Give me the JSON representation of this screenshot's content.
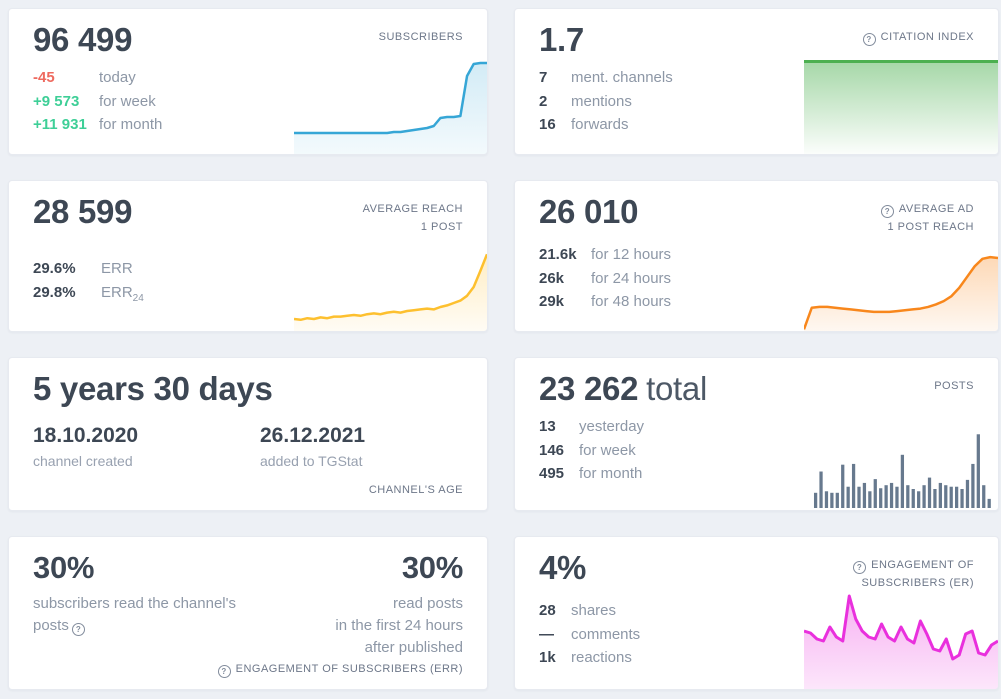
{
  "colors": {
    "page_background": "#edf0f5",
    "card_background": "#ffffff",
    "heading_text": "#3d4754",
    "muted_label": "#8d97a6",
    "corner_label": "#6d7789",
    "negative": "#ee6a5f",
    "positive": "#3ecf97",
    "subscribers_line": "#36a6d6",
    "citation_line": "#4cb050",
    "reach_line": "#fdc02f",
    "ad_reach_line": "#f8871c",
    "posts_bars": "#67798e",
    "er_line": "#e930dd"
  },
  "cards": {
    "subscribers": {
      "corner_label": "SUBSCRIBERS",
      "value": "96 499",
      "stats": [
        {
          "value": "-45",
          "label": "today"
        },
        {
          "value": "+9 573",
          "label": "for week"
        },
        {
          "value": "+11 931",
          "label": "for month"
        }
      ]
    },
    "citation": {
      "corner_label": "CITATION INDEX",
      "value": "1.7",
      "stats": [
        {
          "value": "7",
          "label": "ment. channels"
        },
        {
          "value": "2",
          "label": "mentions"
        },
        {
          "value": "16",
          "label": "forwards"
        }
      ]
    },
    "avg_reach": {
      "corner_label_line1": "AVERAGE REACH",
      "corner_label_line2": "1 POST",
      "value": "28 599",
      "stats": [
        {
          "value": "29.6%",
          "label": "ERR",
          "sub": ""
        },
        {
          "value": "29.8%",
          "label": "ERR",
          "sub": "24"
        }
      ]
    },
    "avg_ad_reach": {
      "corner_label_line1": "AVERAGE AD",
      "corner_label_line2": "1 POST REACH",
      "value": "26 010",
      "stats": [
        {
          "value": "21.6k",
          "label": "for 12 hours"
        },
        {
          "value": "26k",
          "label": "for 24 hours"
        },
        {
          "value": "29k",
          "label": "for 48 hours"
        }
      ]
    },
    "channel_age": {
      "corner_label": "CHANNEL'S AGE",
      "value": "5 years 30 days",
      "created": {
        "date": "18.10.2020",
        "label": "channel created"
      },
      "added": {
        "date": "26.12.2021",
        "label": "added to TGStat"
      }
    },
    "posts": {
      "corner_label": "POSTS",
      "value": "23 262",
      "value_suffix": "total",
      "stats": [
        {
          "value": "13",
          "label": "yesterday"
        },
        {
          "value": "146",
          "label": "for week"
        },
        {
          "value": "495",
          "label": "for month"
        }
      ]
    },
    "engagement_err": {
      "bottom_label": "ENGAGEMENT OF SUBSCRIBERS (ERR)",
      "left_value": "30%",
      "left_desc_line1": "subscribers read the channel's",
      "left_desc_line2": "posts",
      "right_value": "30%",
      "right_desc_line1": "read posts",
      "right_desc_line2": "in the first 24 hours",
      "right_desc_line3": "after published"
    },
    "engagement_er": {
      "corner_label_line1": "ENGAGEMENT OF",
      "corner_label_line2": "SUBSCRIBERS (ER)",
      "value": "4%",
      "stats": [
        {
          "value": "28",
          "label": "shares"
        },
        {
          "value": "—",
          "label": "comments"
        },
        {
          "value": "1k",
          "label": "reactions"
        }
      ]
    }
  },
  "chart_data": [
    {
      "id": "subscribers",
      "type": "area",
      "title": "Subscribers trend sparkline",
      "color": "#36a6d6",
      "fill_top": 0.22,
      "fill_bottom": 0.06,
      "stroke_width": 2.5,
      "ylim": [
        0,
        100
      ],
      "values": [
        21,
        21,
        21,
        21,
        21,
        21,
        21,
        21,
        21,
        21,
        21,
        21,
        21,
        21,
        21,
        22,
        22,
        23,
        24,
        25,
        26,
        28,
        36,
        37,
        37,
        38,
        78,
        90,
        91,
        91
      ]
    },
    {
      "id": "citation_index",
      "type": "area",
      "title": "Citation index sparkline (flat at 1.7)",
      "color": "#4cb050",
      "fill_top": 0.5,
      "fill_bottom": 0.02,
      "stroke_width": 3,
      "ylim": [
        0,
        1.8
      ],
      "values": [
        1.7,
        1.7,
        1.7,
        1.7,
        1.7,
        1.7,
        1.7,
        1.7,
        1.7,
        1.7
      ]
    },
    {
      "id": "avg_reach",
      "type": "area",
      "title": "Average reach sparkline",
      "color": "#fdc02f",
      "fill_top": 0.28,
      "fill_bottom": 0.05,
      "stroke_width": 2.5,
      "ylim": [
        0,
        100
      ],
      "values": [
        15,
        14,
        16,
        15,
        17,
        16,
        18,
        18,
        19,
        20,
        19,
        21,
        22,
        21,
        23,
        24,
        23,
        25,
        26,
        27,
        28,
        27,
        30,
        32,
        35,
        38,
        44,
        55,
        75,
        96
      ]
    },
    {
      "id": "avg_ad_reach",
      "type": "area",
      "title": "Average ad post reach sparkline",
      "color": "#f8871c",
      "fill_top": 0.32,
      "fill_bottom": 0.06,
      "stroke_width": 2.5,
      "ylim": [
        0,
        100
      ],
      "values": [
        2,
        28,
        29,
        29,
        28,
        27,
        26,
        25,
        24,
        23,
        23,
        23,
        24,
        25,
        26,
        27,
        29,
        32,
        36,
        42,
        52,
        65,
        78,
        87,
        89,
        88
      ]
    },
    {
      "id": "posts",
      "type": "bar",
      "title": "Posts per day bars (relative heights)",
      "color": "#67798e",
      "ylim": [
        0,
        100
      ],
      "values": [
        20,
        48,
        22,
        20,
        20,
        57,
        28,
        58,
        28,
        33,
        22,
        38,
        26,
        30,
        33,
        28,
        70,
        30,
        25,
        22,
        30,
        40,
        25,
        33,
        30,
        28,
        28,
        25,
        37,
        58,
        97,
        30,
        12
      ]
    },
    {
      "id": "engagement_er",
      "type": "area",
      "title": "Engagement of subscribers (ER) sparkline",
      "color": "#e930dd",
      "fill_top": 0.38,
      "fill_bottom": 0.12,
      "stroke_width": 3,
      "ylim": [
        0,
        100
      ],
      "values": [
        58,
        56,
        50,
        48,
        62,
        52,
        48,
        93,
        70,
        58,
        52,
        50,
        65,
        52,
        48,
        62,
        50,
        46,
        68,
        55,
        40,
        38,
        50,
        30,
        34,
        55,
        58,
        36,
        34,
        44,
        48
      ]
    }
  ]
}
